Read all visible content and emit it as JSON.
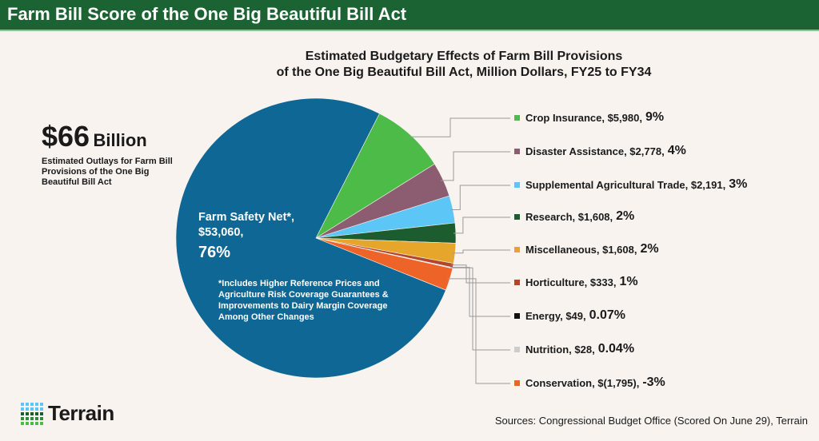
{
  "header": {
    "title": "Farm Bill Score of the One Big Beautiful Bill Act"
  },
  "summary": {
    "amount": "$66",
    "unit": "Billion",
    "description": "Estimated Outlays for Farm Bill Provisions of the One Big Beautiful Bill Act"
  },
  "chart_data": {
    "type": "pie",
    "title_line1": "Estimated Budgetary Effects of Farm Bill Provisions",
    "title_line2": "of the One Big Beautiful Bill Act, Million Dollars, FY25 to FY34",
    "slices": [
      {
        "name": "Crop Insurance",
        "label": "Crop Insurance, $5,980,",
        "value": 5980,
        "pct": "9%",
        "color": "#4cbb47"
      },
      {
        "name": "Disaster Assistance",
        "label": "Disaster Assistance, $2,778,",
        "value": 2778,
        "pct": "4%",
        "color": "#8c5d70"
      },
      {
        "name": "Supplemental Agricultural Trade",
        "label": "Supplemental Agricultural Trade, $2,191,",
        "value": 2191,
        "pct": "3%",
        "color": "#5cc6f6"
      },
      {
        "name": "Research",
        "label": "Research, $1,608,",
        "value": 1608,
        "pct": "2%",
        "color": "#1c5c2e"
      },
      {
        "name": "Miscellaneous",
        "label": "Miscellaneous, $1,608,",
        "value": 1608,
        "pct": "2%",
        "color": "#e6a52b"
      },
      {
        "name": "Horticulture",
        "label": "Horticulture, $333,",
        "value": 333,
        "pct": "1%",
        "color": "#b4452a"
      },
      {
        "name": "Energy",
        "label": "Energy, $49,",
        "value": 49,
        "pct": "0.07%",
        "color": "#111111"
      },
      {
        "name": "Nutrition",
        "label": "Nutrition, $28,",
        "value": 28,
        "pct": "0.04%",
        "color": "#cccccc"
      },
      {
        "name": "Conservation",
        "label": "Conservation, $(1,795),",
        "value": -1795,
        "pct": "-3%",
        "color": "#ee6327"
      },
      {
        "name": "Farm Safety Net*",
        "label": "Farm Safety Net*,",
        "amount": "$53,060,",
        "value": 53060,
        "pct": "76%",
        "color": "#0f6795"
      }
    ],
    "footnote": "*Includes Higher Reference Prices and Agriculture Risk Coverage Guarantees & Improvements to Dairy Margin Coverage Among Other Changes"
  },
  "footer": {
    "logo": "Terrain",
    "sources": "Sources: Congressional Budget Office (Scored On June 29), Terrain"
  }
}
